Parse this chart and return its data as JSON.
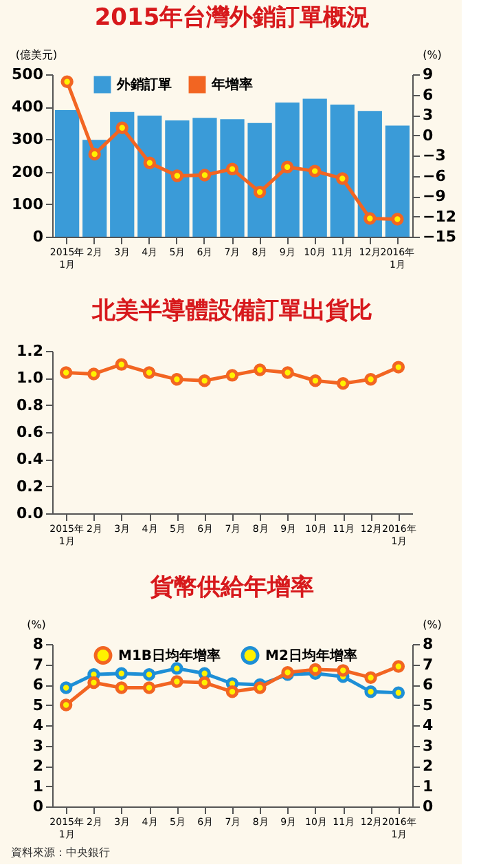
{
  "chart_data": [
    {
      "type": "bar",
      "title": "2015年台灣外銷訂單概況",
      "ylabel": "(億美元)",
      "y2label": "(%)",
      "categories": [
        "2015年\n1月",
        "2月",
        "3月",
        "4月",
        "5月",
        "6月",
        "7月",
        "8月",
        "9月",
        "10月",
        "11月",
        "12月",
        "2016年\n1月"
      ],
      "series": [
        {
          "name": "外銷訂單",
          "type": "bar",
          "color": "#3a9bd8",
          "values": [
            390,
            298,
            384,
            373,
            358,
            366,
            362,
            350,
            413,
            425,
            407,
            387,
            342
          ]
        },
        {
          "name": "年增率",
          "type": "line",
          "axis": "y2",
          "color": "#f26522",
          "values": [
            7.9,
            -2.8,
            1.1,
            -4.1,
            -6.0,
            -5.9,
            -5.0,
            -8.4,
            -4.7,
            -5.3,
            -6.4,
            -12.3,
            -12.4
          ]
        }
      ],
      "ylim": [
        0,
        500
      ],
      "yticks": [
        0,
        100,
        200,
        300,
        400,
        500
      ],
      "y2lim": [
        -15,
        9
      ],
      "y2ticks": [
        -15,
        -12,
        -9,
        -6,
        -3,
        0,
        3,
        6,
        9
      ],
      "legend": "top left",
      "marker": "circle",
      "grid": false
    },
    {
      "type": "line",
      "title": "北美半導體設備訂單出貨比",
      "categories": [
        "2015年\n1月",
        "2月",
        "3月",
        "4月",
        "5月",
        "6月",
        "7月",
        "8月",
        "9月",
        "10月",
        "11月",
        "12月",
        "2016年\n1月"
      ],
      "series": [
        {
          "color": "#f26522",
          "values": [
            1.04,
            1.03,
            1.1,
            1.04,
            0.99,
            0.98,
            1.02,
            1.06,
            1.04,
            0.98,
            0.96,
            0.99,
            1.08
          ]
        }
      ],
      "ylim": [
        0,
        1.2
      ],
      "yticks": [
        {
          "value": 0,
          "label": "0.0"
        },
        {
          "value": 0.2,
          "label": "0.2"
        },
        {
          "value": 0.4,
          "label": "0.4"
        },
        {
          "value": 0.6,
          "label": "0.6"
        },
        {
          "value": 0.8,
          "label": "0.8"
        },
        {
          "value": 1.0,
          "label": "1.0"
        },
        {
          "value": 1.2,
          "label": "1.2"
        }
      ],
      "marker": "circle",
      "grid": false
    },
    {
      "type": "line",
      "title": "貨幣供給年增率",
      "ylabel": "(%)",
      "y2label": "(%)",
      "categories": [
        "2015年\n1月",
        "2月",
        "3月",
        "4月",
        "5月",
        "6月",
        "7月",
        "8月",
        "9月",
        "10月",
        "11月",
        "12月",
        "2016年\n1月"
      ],
      "series": [
        {
          "name": "M1B日均年增率",
          "color": "#f26522",
          "values": [
            5.0,
            6.1,
            5.85,
            5.85,
            6.15,
            6.1,
            5.65,
            5.85,
            6.6,
            6.75,
            6.7,
            6.35,
            6.9
          ]
        },
        {
          "name": "M2日均年增率",
          "color": "#1e8fd6",
          "values": [
            5.85,
            6.5,
            6.55,
            6.5,
            6.8,
            6.55,
            6.05,
            6.0,
            6.5,
            6.55,
            6.4,
            5.65,
            5.6
          ]
        }
      ],
      "ylim": [
        0,
        8
      ],
      "yticks": [
        0,
        1,
        2,
        3,
        4,
        5,
        6,
        7,
        8
      ],
      "y2lim": [
        0,
        8
      ],
      "y2ticks": [
        0,
        1,
        2,
        3,
        4,
        5,
        6,
        7,
        8
      ],
      "legend": "top left",
      "marker": "circle",
      "grid": false,
      "annotations": [
        "資料來源：中央銀行"
      ]
    }
  ]
}
